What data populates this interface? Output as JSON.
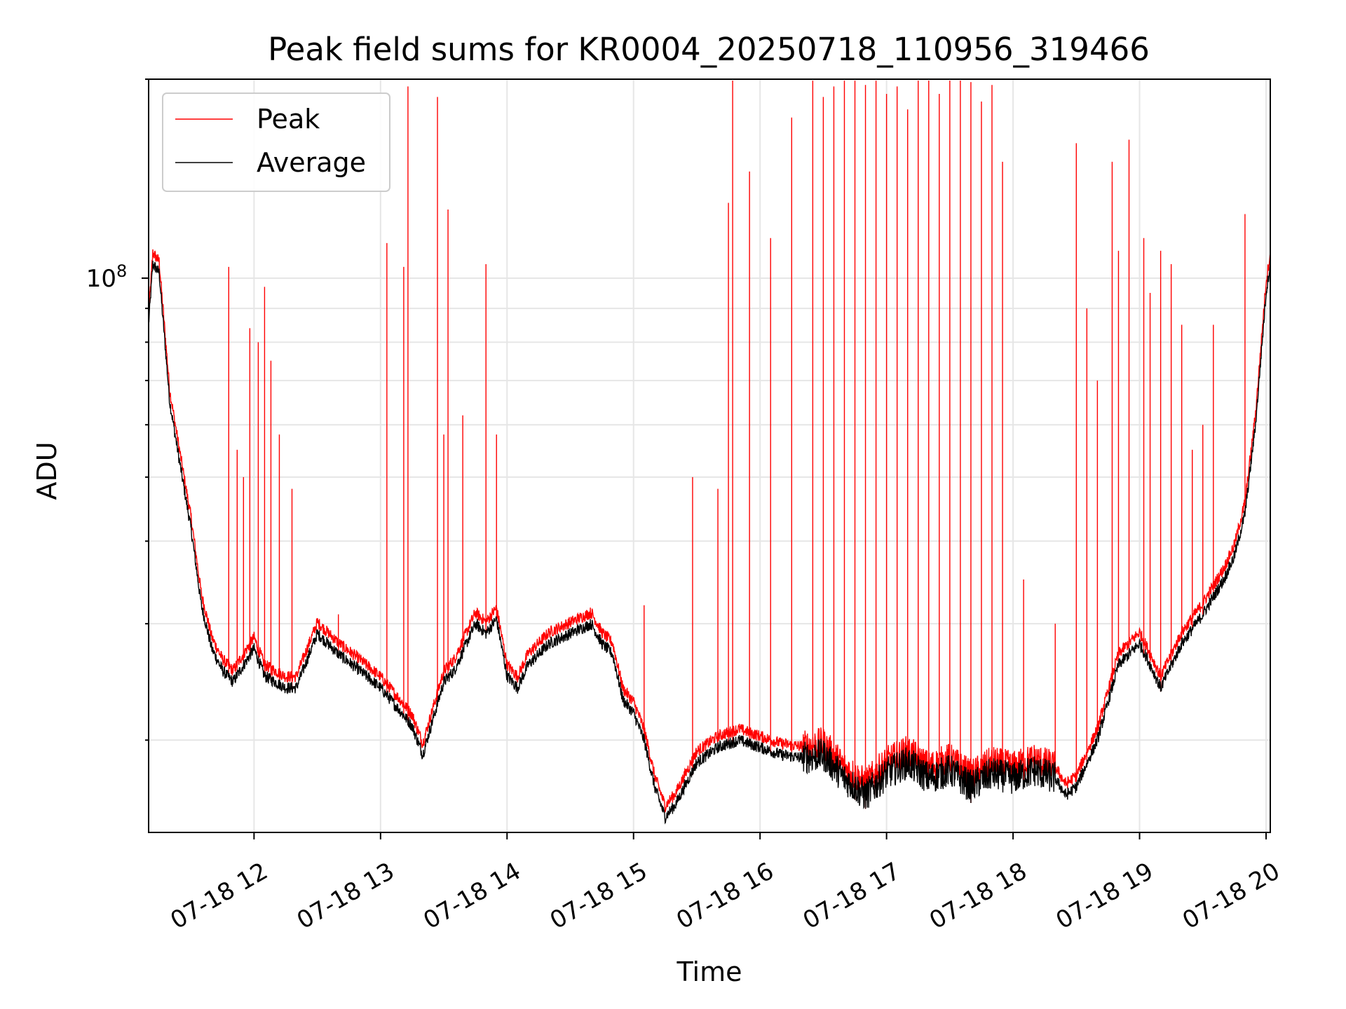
{
  "chart_data": {
    "type": "line",
    "title": "Peak field sums for KR0004_20250718_110956_319466",
    "xlabel": "Time",
    "ylabel": "ADU",
    "yscale": "log",
    "ylim": [
      14500000,
      200000000
    ],
    "xlim": [
      "2025-07-18 11:10",
      "2025-07-18 20:02"
    ],
    "grid": true,
    "legend": {
      "placement": "top-left",
      "entries": [
        "Peak",
        "Average"
      ]
    },
    "colors": {
      "Peak": "#ff0000",
      "Average": "#000000"
    },
    "x_ticks": [
      {
        "value": "2025-07-18 12:00",
        "label": "07-18 12"
      },
      {
        "value": "2025-07-18 13:00",
        "label": "07-18 13"
      },
      {
        "value": "2025-07-18 14:00",
        "label": "07-18 14"
      },
      {
        "value": "2025-07-18 15:00",
        "label": "07-18 15"
      },
      {
        "value": "2025-07-18 16:00",
        "label": "07-18 16"
      },
      {
        "value": "2025-07-18 17:00",
        "label": "07-18 17"
      },
      {
        "value": "2025-07-18 18:00",
        "label": "07-18 18"
      },
      {
        "value": "2025-07-18 19:00",
        "label": "07-18 19"
      },
      {
        "value": "2025-07-18 20:00",
        "label": "07-18 20"
      }
    ],
    "y_ticks": [
      {
        "value": 100000000,
        "label": "10^8"
      }
    ],
    "series": [
      {
        "name": "Average",
        "x": [
          "2025-07-18 11:10",
          "2025-07-18 11:12",
          "2025-07-18 11:15",
          "2025-07-18 11:20",
          "2025-07-18 11:25",
          "2025-07-18 11:30",
          "2025-07-18 11:35",
          "2025-07-18 11:40",
          "2025-07-18 11:45",
          "2025-07-18 11:50",
          "2025-07-18 12:00",
          "2025-07-18 12:05",
          "2025-07-18 12:15",
          "2025-07-18 12:20",
          "2025-07-18 12:30",
          "2025-07-18 12:40",
          "2025-07-18 12:50",
          "2025-07-18 13:00",
          "2025-07-18 13:10",
          "2025-07-18 13:15",
          "2025-07-18 13:20",
          "2025-07-18 13:30",
          "2025-07-18 13:35",
          "2025-07-18 13:45",
          "2025-07-18 13:50",
          "2025-07-18 13:55",
          "2025-07-18 14:00",
          "2025-07-18 14:05",
          "2025-07-18 14:10",
          "2025-07-18 14:20",
          "2025-07-18 14:30",
          "2025-07-18 14:40",
          "2025-07-18 14:45",
          "2025-07-18 14:50",
          "2025-07-18 14:55",
          "2025-07-18 15:00",
          "2025-07-18 15:05",
          "2025-07-18 15:10",
          "2025-07-18 15:15",
          "2025-07-18 15:20",
          "2025-07-18 15:30",
          "2025-07-18 15:40",
          "2025-07-18 15:50",
          "2025-07-18 16:00",
          "2025-07-18 16:10",
          "2025-07-18 16:20",
          "2025-07-18 16:30",
          "2025-07-18 16:40",
          "2025-07-18 16:50",
          "2025-07-18 17:00",
          "2025-07-18 17:10",
          "2025-07-18 17:20",
          "2025-07-18 17:30",
          "2025-07-18 17:40",
          "2025-07-18 17:50",
          "2025-07-18 18:00",
          "2025-07-18 18:10",
          "2025-07-18 18:20",
          "2025-07-18 18:25",
          "2025-07-18 18:30",
          "2025-07-18 18:40",
          "2025-07-18 18:50",
          "2025-07-18 19:00",
          "2025-07-18 19:05",
          "2025-07-18 19:10",
          "2025-07-18 19:20",
          "2025-07-18 19:30",
          "2025-07-18 19:40",
          "2025-07-18 19:45",
          "2025-07-18 19:50",
          "2025-07-18 19:55",
          "2025-07-18 20:00",
          "2025-07-18 20:02"
        ],
        "values": [
          85000000,
          105000000,
          102000000,
          65000000,
          52000000,
          42000000,
          32000000,
          27500000,
          25500000,
          24500000,
          27500000,
          25000000,
          24000000,
          24000000,
          29000000,
          27000000,
          25500000,
          24000000,
          22000000,
          21000000,
          19000000,
          24500000,
          25500000,
          30000000,
          29000000,
          30500000,
          25000000,
          24000000,
          26000000,
          28000000,
          29000000,
          30000000,
          28000000,
          27000000,
          23000000,
          22000000,
          20000000,
          17000000,
          15300000,
          16000000,
          18500000,
          19500000,
          20000000,
          19500000,
          19000000,
          18800000,
          19000000,
          17500000,
          16500000,
          17800000,
          18500000,
          17500000,
          18000000,
          17000000,
          17800000,
          17500000,
          18000000,
          17500000,
          16500000,
          17000000,
          20000000,
          26000000,
          28000000,
          26000000,
          24000000,
          28000000,
          31000000,
          35000000,
          38000000,
          44000000,
          60000000,
          95000000,
          105000000
        ]
      },
      {
        "name": "Peak",
        "values_note": "",
        "spikes": [
          {
            "x": "2025-07-18 11:48",
            "y": 104000000
          },
          {
            "x": "2025-07-18 11:52",
            "y": 55000000
          },
          {
            "x": "2025-07-18 11:55",
            "y": 50000000
          },
          {
            "x": "2025-07-18 11:58",
            "y": 84000000
          },
          {
            "x": "2025-07-18 12:02",
            "y": 80000000
          },
          {
            "x": "2025-07-18 12:05",
            "y": 97000000
          },
          {
            "x": "2025-07-18 12:08",
            "y": 75000000
          },
          {
            "x": "2025-07-18 12:12",
            "y": 58000000
          },
          {
            "x": "2025-07-18 12:18",
            "y": 48000000
          },
          {
            "x": "2025-07-18 12:40",
            "y": 31000000
          },
          {
            "x": "2025-07-18 13:03",
            "y": 113000000
          },
          {
            "x": "2025-07-18 13:11",
            "y": 104000000
          },
          {
            "x": "2025-07-18 13:13",
            "y": 195000000
          },
          {
            "x": "2025-07-18 13:27",
            "y": 188000000
          },
          {
            "x": "2025-07-18 13:30",
            "y": 58000000
          },
          {
            "x": "2025-07-18 13:32",
            "y": 127000000
          },
          {
            "x": "2025-07-18 13:39",
            "y": 62000000
          },
          {
            "x": "2025-07-18 13:50",
            "y": 105000000
          },
          {
            "x": "2025-07-18 13:55",
            "y": 58000000
          },
          {
            "x": "2025-07-18 15:05",
            "y": 32000000
          },
          {
            "x": "2025-07-18 15:28",
            "y": 50000000
          },
          {
            "x": "2025-07-18 15:40",
            "y": 48000000
          },
          {
            "x": "2025-07-18 15:45",
            "y": 130000000
          },
          {
            "x": "2025-07-18 15:47",
            "y": 200000000
          },
          {
            "x": "2025-07-18 15:55",
            "y": 145000000
          },
          {
            "x": "2025-07-18 16:05",
            "y": 115000000
          },
          {
            "x": "2025-07-18 16:15",
            "y": 175000000
          },
          {
            "x": "2025-07-18 16:25",
            "y": 200000000
          },
          {
            "x": "2025-07-18 16:30",
            "y": 188000000
          },
          {
            "x": "2025-07-18 16:35",
            "y": 195000000
          },
          {
            "x": "2025-07-18 16:40",
            "y": 200000000
          },
          {
            "x": "2025-07-18 16:45",
            "y": 200000000
          },
          {
            "x": "2025-07-18 16:50",
            "y": 196000000
          },
          {
            "x": "2025-07-18 16:55",
            "y": 200000000
          },
          {
            "x": "2025-07-18 17:00",
            "y": 190000000
          },
          {
            "x": "2025-07-18 17:05",
            "y": 195000000
          },
          {
            "x": "2025-07-18 17:10",
            "y": 180000000
          },
          {
            "x": "2025-07-18 17:15",
            "y": 200000000
          },
          {
            "x": "2025-07-18 17:20",
            "y": 200000000
          },
          {
            "x": "2025-07-18 17:25",
            "y": 190000000
          },
          {
            "x": "2025-07-18 17:30",
            "y": 200000000
          },
          {
            "x": "2025-07-18 17:35",
            "y": 200000000
          },
          {
            "x": "2025-07-18 17:40",
            "y": 198000000
          },
          {
            "x": "2025-07-18 17:45",
            "y": 185000000
          },
          {
            "x": "2025-07-18 17:50",
            "y": 196000000
          },
          {
            "x": "2025-07-18 17:55",
            "y": 150000000
          },
          {
            "x": "2025-07-18 18:05",
            "y": 35000000
          },
          {
            "x": "2025-07-18 18:20",
            "y": 30000000
          },
          {
            "x": "2025-07-18 18:30",
            "y": 160000000
          },
          {
            "x": "2025-07-18 18:35",
            "y": 90000000
          },
          {
            "x": "2025-07-18 18:40",
            "y": 70000000
          },
          {
            "x": "2025-07-18 18:47",
            "y": 150000000
          },
          {
            "x": "2025-07-18 18:50",
            "y": 110000000
          },
          {
            "x": "2025-07-18 18:55",
            "y": 162000000
          },
          {
            "x": "2025-07-18 19:02",
            "y": 115000000
          },
          {
            "x": "2025-07-18 19:05",
            "y": 95000000
          },
          {
            "x": "2025-07-18 19:10",
            "y": 110000000
          },
          {
            "x": "2025-07-18 19:15",
            "y": 105000000
          },
          {
            "x": "2025-07-18 19:20",
            "y": 85000000
          },
          {
            "x": "2025-07-18 19:25",
            "y": 55000000
          },
          {
            "x": "2025-07-18 19:30",
            "y": 60000000
          },
          {
            "x": "2025-07-18 19:35",
            "y": 85000000
          },
          {
            "x": "2025-07-18 19:50",
            "y": 125000000
          }
        ]
      }
    ]
  }
}
